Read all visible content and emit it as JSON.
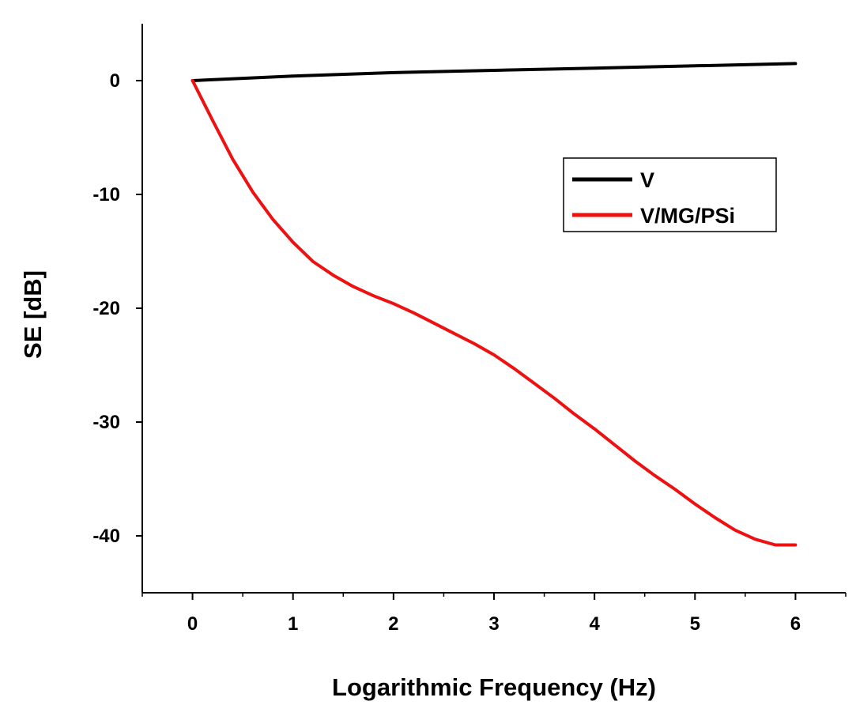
{
  "chart_data": {
    "type": "line",
    "title": "",
    "xlabel": "Logarithmic Frequency (Hz)",
    "ylabel": "SE [dB]",
    "xlim": [
      -0.5,
      6.5
    ],
    "ylim": [
      -45,
      5
    ],
    "x_ticks": [
      0,
      1,
      2,
      3,
      4,
      5,
      6
    ],
    "x_tick_labels": [
      "0",
      "1",
      "2",
      "3",
      "4",
      "5",
      "6"
    ],
    "y_ticks": [
      0,
      -10,
      -20,
      -30,
      -40
    ],
    "y_tick_labels": [
      "0",
      "-10",
      "-20",
      "-30",
      "-40"
    ],
    "legend_position": "right-middle",
    "grid": false,
    "series": [
      {
        "name": "V",
        "color": "#000000",
        "x": [
          0,
          0.5,
          1,
          2,
          3,
          4,
          5,
          6
        ],
        "y": [
          0,
          0.2,
          0.4,
          0.7,
          0.9,
          1.1,
          1.3,
          1.5
        ]
      },
      {
        "name": "V/MG/PSi",
        "color": "#ee1111",
        "x": [
          0,
          0.2,
          0.4,
          0.6,
          0.8,
          1.0,
          1.2,
          1.4,
          1.6,
          1.8,
          2.0,
          2.2,
          2.4,
          2.6,
          2.8,
          3.0,
          3.2,
          3.4,
          3.6,
          3.8,
          4.0,
          4.2,
          4.4,
          4.6,
          4.8,
          5.0,
          5.2,
          5.4,
          5.6,
          5.8,
          6.0
        ],
        "y": [
          0,
          -3.5,
          -6.9,
          -9.8,
          -12.2,
          -14.2,
          -15.9,
          -17.1,
          -18.1,
          -18.9,
          -19.6,
          -20.4,
          -21.3,
          -22.2,
          -23.1,
          -24.1,
          -25.3,
          -26.6,
          -27.9,
          -29.3,
          -30.6,
          -32.0,
          -33.4,
          -34.7,
          -35.9,
          -37.2,
          -38.4,
          -39.5,
          -40.3,
          -40.8,
          -40.8
        ]
      }
    ]
  }
}
